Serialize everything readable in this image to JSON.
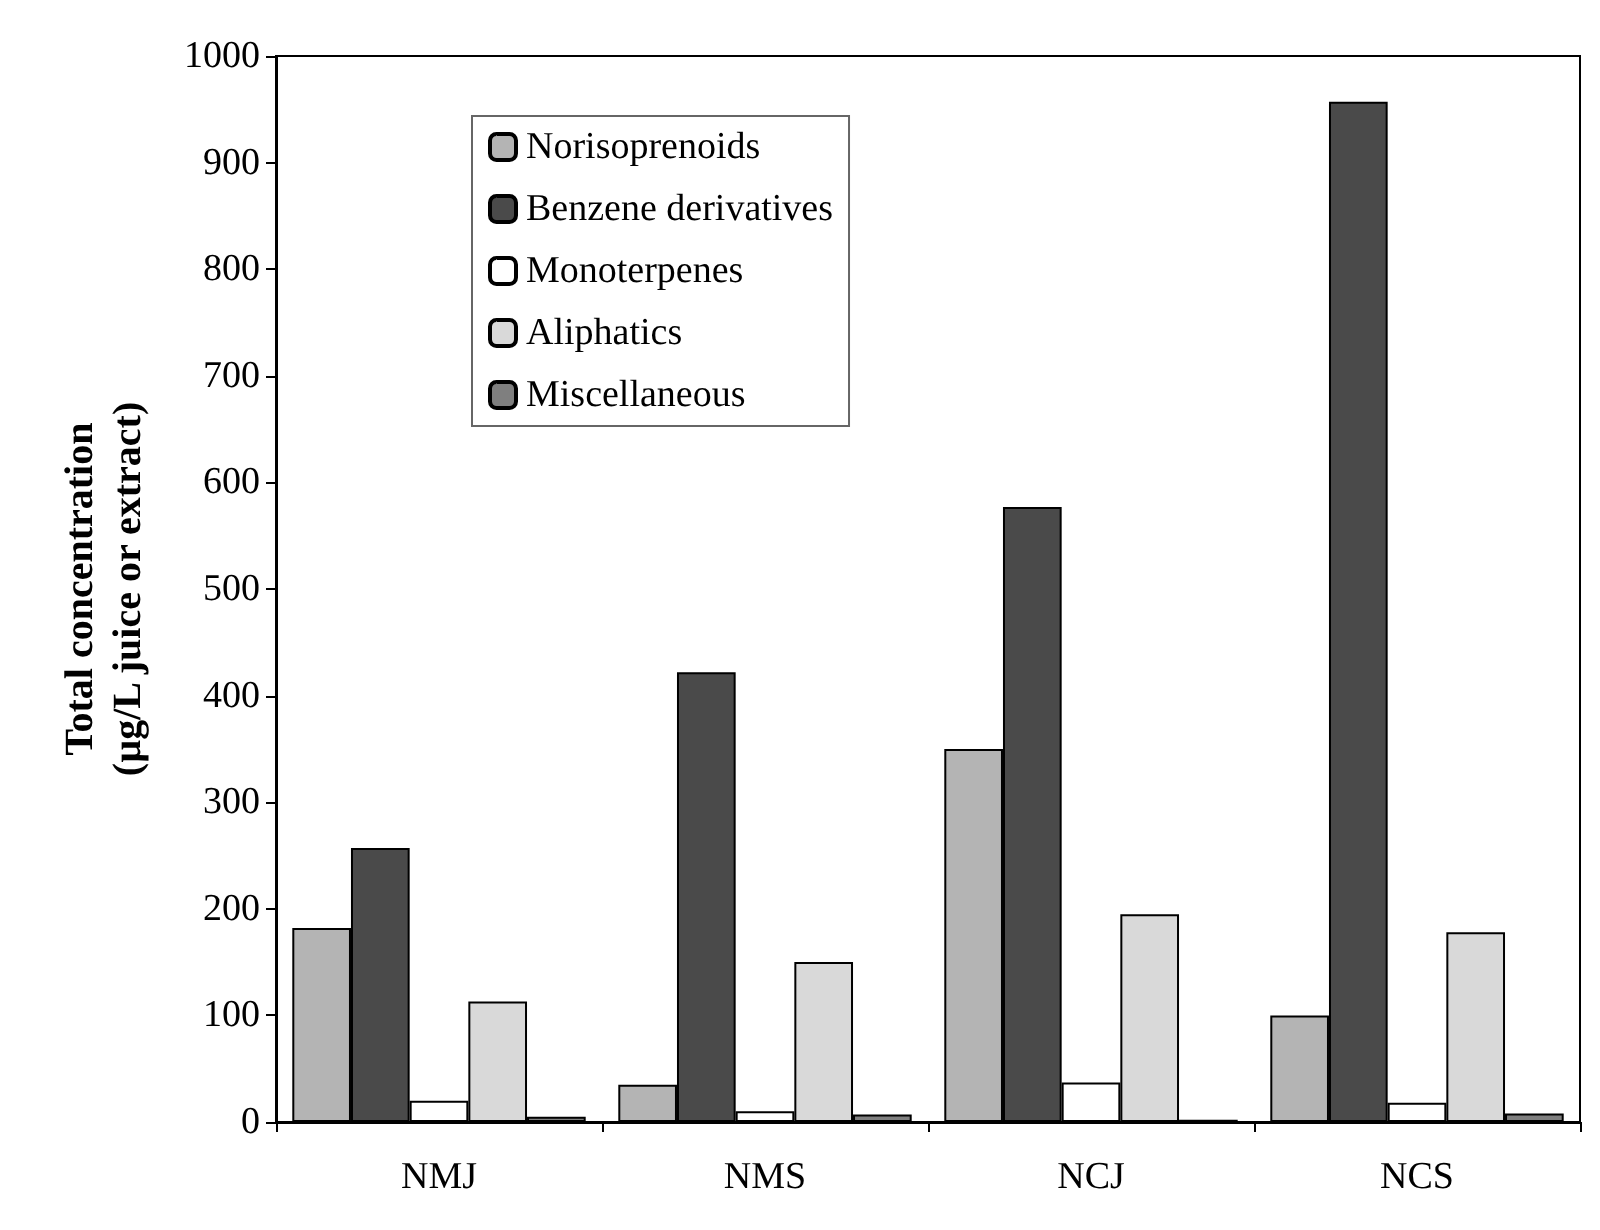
{
  "chart_data": {
    "type": "bar",
    "ylabel": "Total concentration\n(µg/L juice or extract)",
    "categories": [
      "NMJ",
      "NMS",
      "NCJ",
      "NCS"
    ],
    "series": [
      {
        "name": "Norisoprenoids",
        "color": "#b4b4b4",
        "values": [
          182,
          35,
          350,
          100
        ]
      },
      {
        "name": "Benzene derivatives",
        "color": "#4a4a4a",
        "values": [
          257,
          422,
          577,
          957
        ]
      },
      {
        "name": "Monoterpenes",
        "color": "#ffffff",
        "values": [
          20,
          10,
          37,
          18
        ]
      },
      {
        "name": "Aliphatics",
        "color": "#d9d9d9",
        "values": [
          113,
          150,
          195,
          178
        ]
      },
      {
        "name": "Miscellaneous",
        "color": "#7f7f7f",
        "values": [
          5,
          7,
          2,
          8
        ]
      }
    ],
    "ylim": [
      0,
      1000
    ],
    "yticks": [
      0,
      100,
      200,
      300,
      400,
      500,
      600,
      700,
      800,
      900,
      1000
    ],
    "grid": false,
    "legend": "top left"
  }
}
